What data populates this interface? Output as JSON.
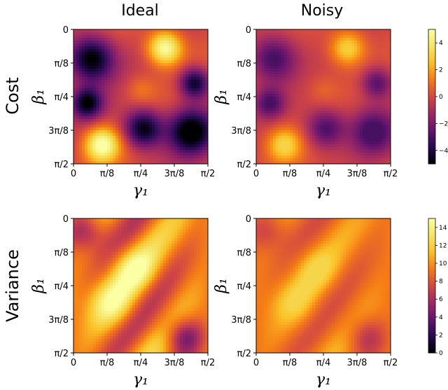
{
  "column_titles": [
    "Ideal",
    "Noisy"
  ],
  "row_titles": [
    "Cost",
    "Variance"
  ],
  "axes": {
    "xlabel": "γ₁",
    "ylabel": "β₁",
    "xticks": [
      "0",
      "π/8",
      "π/4",
      "3π/8",
      "π/2"
    ],
    "yticks": [
      "0",
      "π/8",
      "π/4",
      "3π/8",
      "π/2"
    ]
  },
  "colormap": "inferno",
  "colorbars": [
    {
      "row": "Cost",
      "ticks": [
        "4",
        "2",
        "0",
        "−2",
        "−4"
      ],
      "tick_values": [
        4,
        2,
        0,
        -2,
        -4
      ],
      "range": [
        -5,
        5
      ]
    },
    {
      "row": "Variance",
      "ticks": [
        "14",
        "12",
        "10",
        "8",
        "6",
        "4",
        "2",
        "0"
      ],
      "tick_values": [
        14,
        12,
        10,
        8,
        6,
        4,
        2,
        0
      ],
      "range": [
        0,
        15
      ]
    }
  ],
  "chart_data": [
    {
      "type": "heatmap",
      "row": "Cost",
      "title": "Ideal",
      "xlabel": "γ₁",
      "ylabel": "β₁",
      "x_range": [
        0,
        1.5708
      ],
      "y_range": [
        0,
        1.5708
      ],
      "z_range": [
        -5,
        5
      ],
      "grid_resolution": 48,
      "description_values": {
        "max_region": "high near (γ₁≈0.26π, β₁≈0.06π) and (γ₁≈0.08π, β₁≈0.42π)",
        "min": -5,
        "max": 5
      }
    },
    {
      "type": "heatmap",
      "row": "Cost",
      "title": "Noisy",
      "xlabel": "γ₁",
      "ylabel": "β₁",
      "x_range": [
        0,
        1.5708
      ],
      "y_range": [
        0,
        1.5708
      ],
      "z_range": [
        -5,
        5
      ],
      "grid_resolution": 48,
      "damping": 0.62
    },
    {
      "type": "heatmap",
      "row": "Variance",
      "title": "Ideal",
      "xlabel": "γ₁",
      "ylabel": "β₁",
      "x_range": [
        0,
        1.5708
      ],
      "y_range": [
        0,
        1.5708
      ],
      "z_range": [
        0,
        15
      ],
      "grid_resolution": 48
    },
    {
      "type": "heatmap",
      "row": "Variance",
      "title": "Noisy",
      "xlabel": "γ₁",
      "ylabel": "β₁",
      "x_range": [
        0,
        1.5708
      ],
      "y_range": [
        0,
        1.5708
      ],
      "z_range": [
        0,
        15
      ],
      "grid_resolution": 48,
      "damping": 0.55
    }
  ]
}
